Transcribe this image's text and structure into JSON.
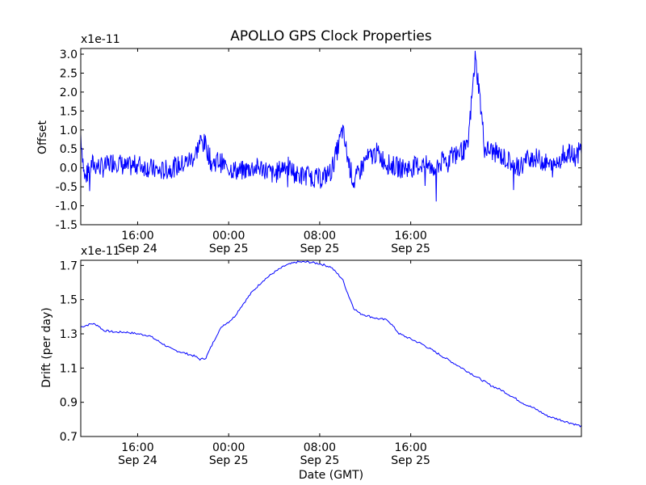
{
  "title": "APOLLO GPS Clock Properties",
  "chart_data": [
    {
      "type": "line",
      "ylabel": "Offset",
      "y_multiplier": "x1e-11",
      "ylim": [
        -1.5,
        3.15
      ],
      "yticks": [
        {
          "value": -1.5,
          "label": "-1.5"
        },
        {
          "value": -1.0,
          "label": "-1.0"
        },
        {
          "value": -0.5,
          "label": "-0.5"
        },
        {
          "value": 0.0,
          "label": "0.0"
        },
        {
          "value": 0.5,
          "label": "0.5"
        },
        {
          "value": 1.0,
          "label": "1.0"
        },
        {
          "value": 1.5,
          "label": "1.5"
        },
        {
          "value": 2.0,
          "label": "2.0"
        },
        {
          "value": 2.5,
          "label": "2.5"
        },
        {
          "value": 3.0,
          "label": "3.0"
        }
      ],
      "xlim": [
        "2010-09-24T11:00",
        "2010-09-26T07:00"
      ],
      "xticks": [
        {
          "value": "2010-09-24T16:00",
          "time": "16:00",
          "date": "Sep 24"
        },
        {
          "value": "2010-09-25T00:00",
          "time": "00:00",
          "date": "Sep 25"
        },
        {
          "value": "2010-09-25T08:00",
          "time": "08:00",
          "date": "Sep 25"
        },
        {
          "value": "2010-09-25T16:00",
          "time": "16:00",
          "date": "Sep 25"
        }
      ],
      "color": "#0000ff",
      "series_points": [
        [
          "2010-09-24T11:00",
          0.9
        ],
        [
          "2010-09-24T11:20",
          -0.3
        ],
        [
          "2010-09-24T12:00",
          0.1
        ],
        [
          "2010-09-24T13:00",
          0.0
        ],
        [
          "2010-09-24T14:00",
          0.2
        ],
        [
          "2010-09-24T15:00",
          0.0
        ],
        [
          "2010-09-24T16:00",
          0.1
        ],
        [
          "2010-09-24T17:00",
          0.0
        ],
        [
          "2010-09-24T18:00",
          -0.1
        ],
        [
          "2010-09-24T19:00",
          0.0
        ],
        [
          "2010-09-24T20:00",
          0.1
        ],
        [
          "2010-09-24T21:00",
          0.3
        ],
        [
          "2010-09-24T21:30",
          0.7
        ],
        [
          "2010-09-24T22:00",
          0.6
        ],
        [
          "2010-09-24T22:30",
          0.1
        ],
        [
          "2010-09-24T23:00",
          0.2
        ],
        [
          "2010-09-25T00:00",
          0.0
        ],
        [
          "2010-09-25T01:00",
          -0.1
        ],
        [
          "2010-09-25T02:00",
          0.0
        ],
        [
          "2010-09-25T03:00",
          0.0
        ],
        [
          "2010-09-25T04:00",
          -0.2
        ],
        [
          "2010-09-25T05:00",
          0.1
        ],
        [
          "2010-09-25T06:00",
          -0.2
        ],
        [
          "2010-09-25T07:00",
          -0.2
        ],
        [
          "2010-09-25T08:00",
          -0.3
        ],
        [
          "2010-09-25T09:00",
          -0.1
        ],
        [
          "2010-09-25T09:40",
          0.6
        ],
        [
          "2010-09-25T10:00",
          1.0
        ],
        [
          "2010-09-25T10:30",
          0.2
        ],
        [
          "2010-09-25T11:00",
          -0.4
        ],
        [
          "2010-09-25T12:00",
          0.2
        ],
        [
          "2010-09-25T13:00",
          0.4
        ],
        [
          "2010-09-25T14:00",
          0.1
        ],
        [
          "2010-09-25T15:00",
          0.0
        ],
        [
          "2010-09-25T16:00",
          0.0
        ],
        [
          "2010-09-25T17:00",
          0.1
        ],
        [
          "2010-09-25T18:00",
          0.0
        ],
        [
          "2010-09-25T19:00",
          0.2
        ],
        [
          "2010-09-25T20:00",
          0.4
        ],
        [
          "2010-09-25T21:00",
          0.5
        ],
        [
          "2010-09-25T21:40",
          2.9
        ],
        [
          "2010-09-25T22:00",
          2.1
        ],
        [
          "2010-09-25T22:30",
          0.5
        ],
        [
          "2010-09-25T23:30",
          0.4
        ],
        [
          "2010-09-26T00:30",
          0.2
        ],
        [
          "2010-09-26T01:30",
          0.0
        ],
        [
          "2010-09-26T02:30",
          0.3
        ],
        [
          "2010-09-26T03:30",
          0.2
        ],
        [
          "2010-09-26T04:30",
          0.0
        ],
        [
          "2010-09-26T05:30",
          0.4
        ],
        [
          "2010-09-26T06:30",
          0.3
        ],
        [
          "2010-09-26T07:00",
          0.5
        ]
      ]
    },
    {
      "type": "line",
      "ylabel": "Drift (per day)",
      "xlabel": "Date (GMT)",
      "y_multiplier": "x1e-11",
      "ylim": [
        0.7,
        1.73
      ],
      "yticks": [
        {
          "value": 0.7,
          "label": "0.7"
        },
        {
          "value": 0.9,
          "label": "0.9"
        },
        {
          "value": 1.1,
          "label": "1.1"
        },
        {
          "value": 1.3,
          "label": "1.3"
        },
        {
          "value": 1.5,
          "label": "1.5"
        },
        {
          "value": 1.7,
          "label": "1.7"
        }
      ],
      "xlim": [
        "2010-09-24T11:00",
        "2010-09-26T07:00"
      ],
      "xticks": [
        {
          "value": "2010-09-24T16:00",
          "time": "16:00",
          "date": "Sep 24"
        },
        {
          "value": "2010-09-25T00:00",
          "time": "00:00",
          "date": "Sep 25"
        },
        {
          "value": "2010-09-25T08:00",
          "time": "08:00",
          "date": "Sep 25"
        },
        {
          "value": "2010-09-25T16:00",
          "time": "16:00",
          "date": "Sep 25"
        }
      ],
      "color": "#0000ff",
      "series_points": [
        [
          "2010-09-24T11:00",
          1.34
        ],
        [
          "2010-09-24T11:30",
          1.35
        ],
        [
          "2010-09-24T12:00",
          1.36
        ],
        [
          "2010-09-24T12:30",
          1.35
        ],
        [
          "2010-09-24T13:00",
          1.32
        ],
        [
          "2010-09-24T14:00",
          1.31
        ],
        [
          "2010-09-24T15:00",
          1.31
        ],
        [
          "2010-09-24T16:00",
          1.3
        ],
        [
          "2010-09-24T17:00",
          1.29
        ],
        [
          "2010-09-24T18:00",
          1.25
        ],
        [
          "2010-09-24T19:00",
          1.21
        ],
        [
          "2010-09-24T20:00",
          1.19
        ],
        [
          "2010-09-24T21:00",
          1.17
        ],
        [
          "2010-09-24T21:30",
          1.15
        ],
        [
          "2010-09-24T22:00",
          1.16
        ],
        [
          "2010-09-24T22:30",
          1.23
        ],
        [
          "2010-09-24T23:00",
          1.3
        ],
        [
          "2010-09-24T23:30",
          1.35
        ],
        [
          "2010-09-25T00:00",
          1.37
        ],
        [
          "2010-09-25T00:30",
          1.4
        ],
        [
          "2010-09-25T01:00",
          1.45
        ],
        [
          "2010-09-25T02:00",
          1.54
        ],
        [
          "2010-09-25T03:00",
          1.61
        ],
        [
          "2010-09-25T04:00",
          1.66
        ],
        [
          "2010-09-25T05:00",
          1.7
        ],
        [
          "2010-09-25T06:00",
          1.72
        ],
        [
          "2010-09-25T07:00",
          1.72
        ],
        [
          "2010-09-25T08:00",
          1.71
        ],
        [
          "2010-09-25T09:00",
          1.69
        ],
        [
          "2010-09-25T10:00",
          1.62
        ],
        [
          "2010-09-25T10:30",
          1.53
        ],
        [
          "2010-09-25T11:00",
          1.45
        ],
        [
          "2010-09-25T11:30",
          1.42
        ],
        [
          "2010-09-25T12:00",
          1.41
        ],
        [
          "2010-09-25T13:00",
          1.39
        ],
        [
          "2010-09-25T14:00",
          1.38
        ],
        [
          "2010-09-25T14:30",
          1.34
        ],
        [
          "2010-09-25T15:00",
          1.3
        ],
        [
          "2010-09-25T16:00",
          1.27
        ],
        [
          "2010-09-25T17:00",
          1.24
        ],
        [
          "2010-09-25T18:00",
          1.2
        ],
        [
          "2010-09-25T19:00",
          1.16
        ],
        [
          "2010-09-25T20:00",
          1.12
        ],
        [
          "2010-09-25T21:00",
          1.08
        ],
        [
          "2010-09-25T22:00",
          1.04
        ],
        [
          "2010-09-25T23:00",
          1.0
        ],
        [
          "2010-09-26T00:00",
          0.97
        ],
        [
          "2010-09-26T01:00",
          0.93
        ],
        [
          "2010-09-26T02:00",
          0.89
        ],
        [
          "2010-09-26T03:00",
          0.86
        ],
        [
          "2010-09-26T04:00",
          0.82
        ],
        [
          "2010-09-26T05:00",
          0.8
        ],
        [
          "2010-09-26T06:00",
          0.78
        ],
        [
          "2010-09-26T07:00",
          0.76
        ]
      ]
    }
  ]
}
